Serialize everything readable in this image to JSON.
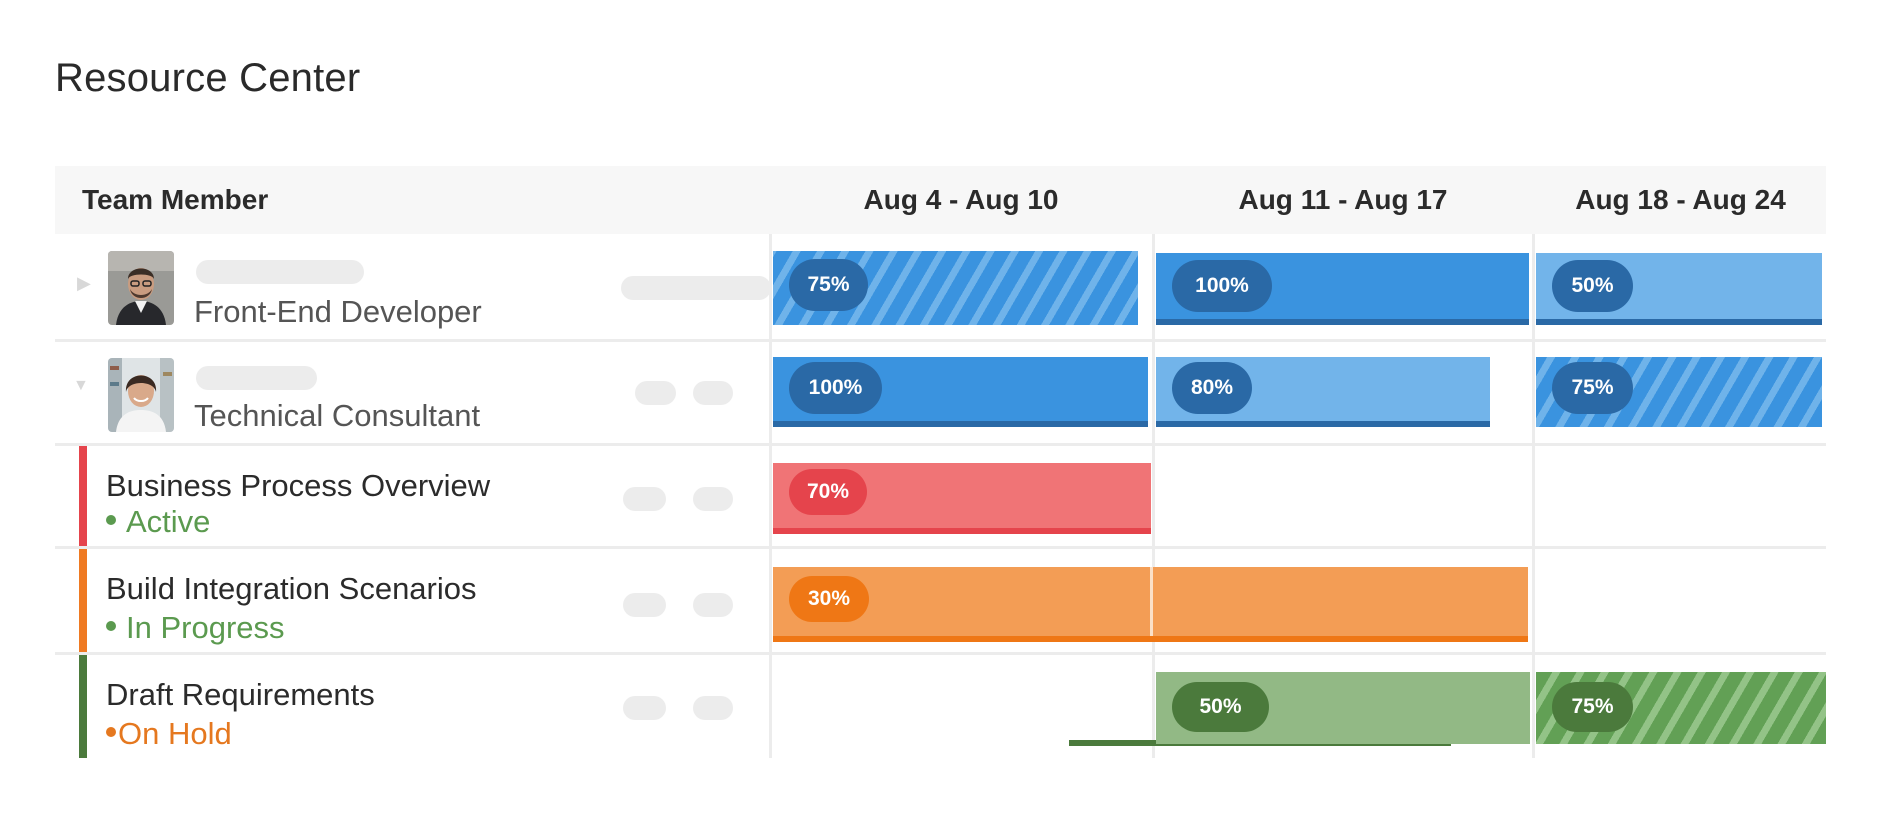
{
  "page": {
    "title": "Resource Center"
  },
  "header": {
    "team_member_label": "Team Member",
    "weeks": [
      "Aug 4 - Aug 10",
      "Aug 11 - Aug 17",
      "Aug 18 - Aug 24"
    ]
  },
  "members": [
    {
      "role": "Front-End Developer",
      "expanded": false,
      "allocations": [
        "75%",
        "100%",
        "50%"
      ]
    },
    {
      "role": "Technical Consultant",
      "expanded": true,
      "allocations": [
        "100%",
        "80%",
        "75%"
      ]
    }
  ],
  "tasks": [
    {
      "name": "Business Process Overview",
      "status": "Active",
      "status_color": "#5b9a4f",
      "accent": "#e5444c",
      "allocation": "70%"
    },
    {
      "name": "Build Integration Scenarios",
      "status": "In Progress",
      "status_color": "#5b9a4f",
      "accent": "#ef7a22",
      "allocation": "30%"
    },
    {
      "name": "Draft Requirements",
      "status": "On Hold",
      "status_color": "#e5781f",
      "accent": "#4b7a3c",
      "allocations": [
        "50%",
        "75%"
      ]
    }
  ],
  "colors": {
    "blue": "#3a93df",
    "blue_light": "#72b4ea",
    "blue_pill": "#2a69a6",
    "red": "#f07476",
    "red_pill": "#e5444c",
    "orange": "#f39d55",
    "orange_pill": "#ef7715",
    "green": "#92b985",
    "green_pill": "#4b7a3c"
  }
}
